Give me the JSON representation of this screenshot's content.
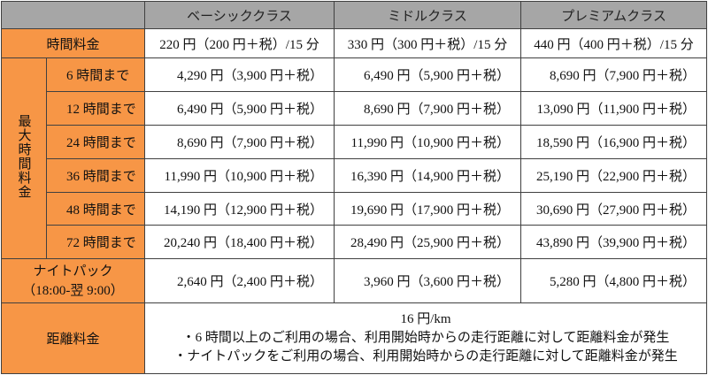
{
  "header": {
    "corner": "",
    "classes": [
      "ベーシッククラス",
      "ミドルクラス",
      "プレミアムクラス"
    ]
  },
  "hourly": {
    "label": "時間料金",
    "values": [
      "220 円（200 円＋税）/15 分",
      "330 円（300 円＋税）/15 分",
      "440 円（400 円＋税）/15 分"
    ]
  },
  "max": {
    "label": "最大時間料金",
    "rows": [
      {
        "label": "6 時間まで",
        "values": [
          "4,290 円（3,900 円＋税）",
          "6,490 円（5,900 円＋税）",
          "8,690 円（7,900 円＋税）"
        ]
      },
      {
        "label": "12 時間まで",
        "values": [
          "6,490 円（5,900 円＋税）",
          "8,690 円（7,900 円＋税）",
          "13,090 円（11,900 円＋税）"
        ]
      },
      {
        "label": "24 時間まで",
        "values": [
          "8,690 円（7,900 円＋税）",
          "11,990 円（10,900 円＋税）",
          "18,590 円（16,900 円＋税）"
        ]
      },
      {
        "label": "36 時間まで",
        "values": [
          "11,990 円（10,900 円＋税）",
          "16,390 円（14,900 円＋税）",
          "25,190 円（22,900 円＋税）"
        ]
      },
      {
        "label": "48 時間まで",
        "values": [
          "14,190 円（12,900 円＋税）",
          "19,690 円（17,900 円＋税）",
          "30,690 円（27,900 円＋税）"
        ]
      },
      {
        "label": "72 時間まで",
        "values": [
          "20,240 円（18,400 円＋税）",
          "28,490 円（25,900 円＋税）",
          "43,890 円（39,900 円＋税）"
        ]
      }
    ]
  },
  "night": {
    "label": "ナイトパック",
    "hours": "（18:00-翌 9:00）",
    "values": [
      "2,640 円（2,400 円＋税）",
      "3,960 円（3,600 円＋税）",
      "5,280 円（4,800 円＋税）"
    ]
  },
  "distance": {
    "label": "距離料金",
    "rate": "16 円/km",
    "notes": [
      "・6 時間以上のご利用の場合、利用開始時からの走行距離に対して距離料金が発生",
      "・ナイトパックをご利用の場合、利用開始時からの走行距離に対して距離料金が発生"
    ]
  },
  "colors": {
    "label_bg": "#f79646",
    "header_bg": "#a6a6a6"
  }
}
